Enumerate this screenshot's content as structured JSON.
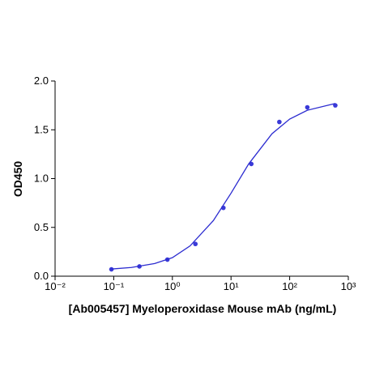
{
  "chart_data": {
    "type": "scatter",
    "x_label": "[Ab005457] Myeloperoxidase Mouse mAb (ng/mL)",
    "y_label": "OD450",
    "xscale": "log",
    "xlim": [
      0.01,
      1000
    ],
    "xticks": [
      {
        "value": 0.01,
        "label": "10⁻²"
      },
      {
        "value": 0.1,
        "label": "10⁻¹"
      },
      {
        "value": 1,
        "label": "10⁰"
      },
      {
        "value": 10,
        "label": "10¹"
      },
      {
        "value": 100,
        "label": "10²"
      },
      {
        "value": 1000,
        "label": "10³"
      }
    ],
    "ylim": [
      0,
      2
    ],
    "yticks": [
      {
        "value": 0,
        "label": "0.0"
      },
      {
        "value": 0.5,
        "label": "0.5"
      },
      {
        "value": 1,
        "label": "1.0"
      },
      {
        "value": 1.5,
        "label": "1.5"
      },
      {
        "value": 2,
        "label": "2.0"
      }
    ],
    "series": [
      {
        "kind": "points",
        "color": "#3a3ad8",
        "x": [
          0.0914,
          0.274,
          0.823,
          2.47,
          7.41,
          22.2,
          66.7,
          200,
          600
        ],
        "values": [
          0.07,
          0.1,
          0.17,
          0.33,
          0.7,
          1.15,
          1.58,
          1.73,
          1.75
        ]
      },
      {
        "kind": "line",
        "color": "#2b2bd0",
        "x": [
          0.09,
          0.2,
          0.5,
          1,
          2,
          5,
          10,
          20,
          50,
          100,
          200,
          600
        ],
        "values": [
          0.073,
          0.089,
          0.13,
          0.19,
          0.31,
          0.57,
          0.85,
          1.15,
          1.46,
          1.61,
          1.7,
          1.77
        ]
      }
    ]
  }
}
